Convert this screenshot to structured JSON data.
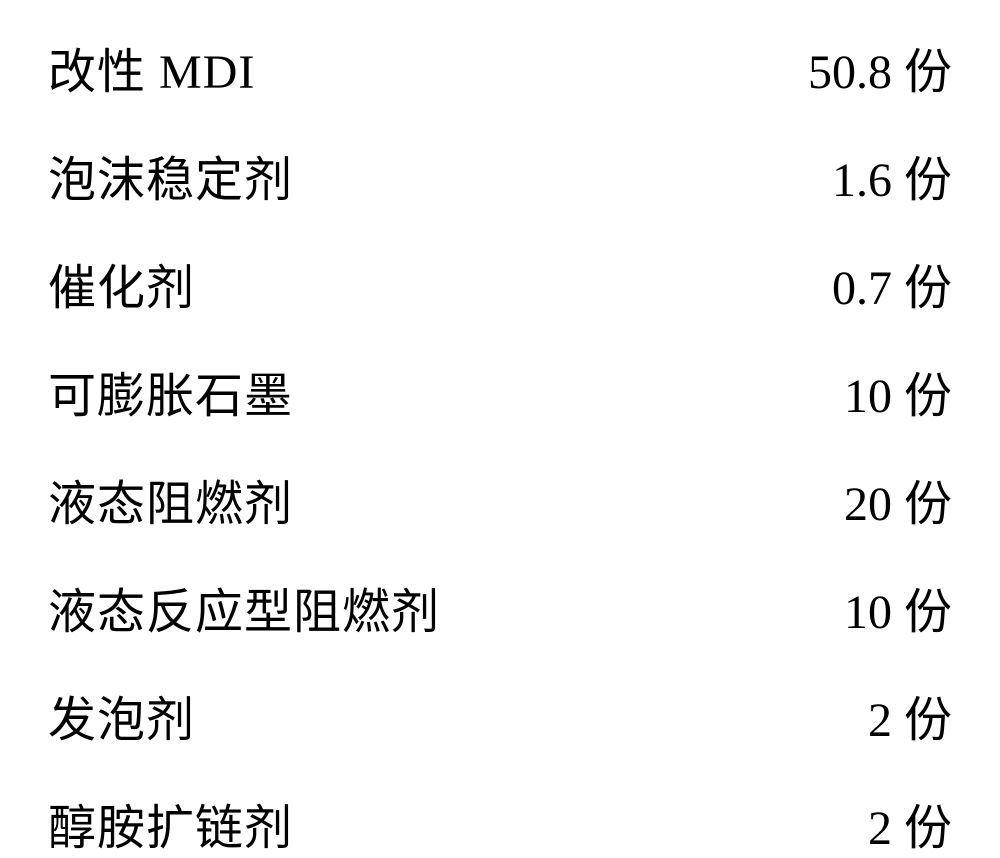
{
  "table": {
    "background_color": "#ffffff",
    "text_color": "#000000",
    "font_size": 48,
    "unit": "份",
    "rows": [
      {
        "label_prefix": "改性 ",
        "label_latin": "MDI",
        "label_suffix": "",
        "value": "50.8"
      },
      {
        "label_prefix": "泡沫稳定剂",
        "label_latin": "",
        "label_suffix": "",
        "value": "1.6"
      },
      {
        "label_prefix": "催化剂",
        "label_latin": "",
        "label_suffix": "",
        "value": "0.7"
      },
      {
        "label_prefix": "可膨胀石墨",
        "label_latin": "",
        "label_suffix": "",
        "value": "10"
      },
      {
        "label_prefix": "液态阻燃剂",
        "label_latin": "",
        "label_suffix": "",
        "value": "20"
      },
      {
        "label_prefix": "液态反应型阻燃剂",
        "label_latin": "",
        "label_suffix": "",
        "value": "10"
      },
      {
        "label_prefix": "发泡剂",
        "label_latin": "",
        "label_suffix": "",
        "value": "2"
      },
      {
        "label_prefix": "醇胺扩链剂",
        "label_latin": "",
        "label_suffix": "",
        "value": "2"
      }
    ]
  }
}
